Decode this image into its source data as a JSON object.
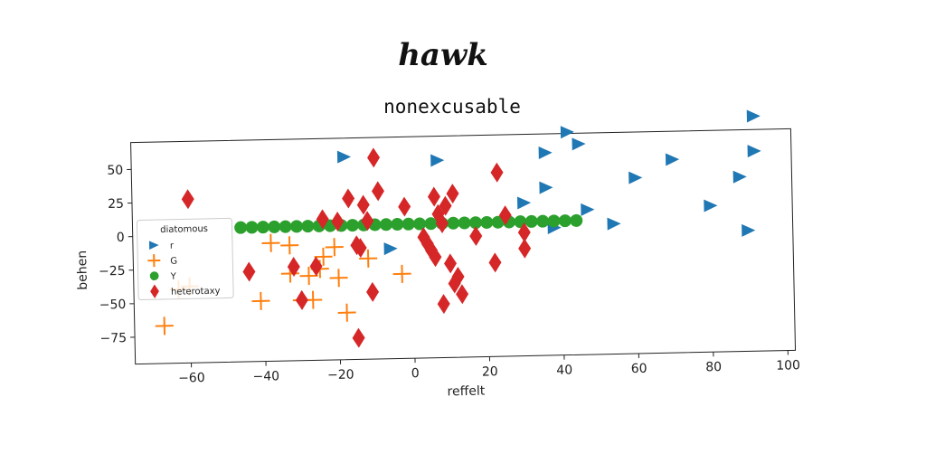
{
  "header": {
    "word": "hawk"
  },
  "chart_data": {
    "type": "scatter",
    "title": "nonexcusable",
    "xlabel": "reffelt",
    "ylabel": "behen",
    "xlim": [
      -75,
      102
    ],
    "ylim": [
      -95,
      70
    ],
    "xticks": [
      -60,
      -40,
      -20,
      0,
      20,
      40,
      60,
      80,
      100
    ],
    "yticks": [
      50,
      25,
      0,
      -25,
      -50,
      -75
    ],
    "xtick_labels": [
      "−60",
      "−40",
      "−20",
      "0",
      "20",
      "40",
      "60",
      "80",
      "100"
    ],
    "ytick_labels": [
      "50",
      "25",
      "0",
      "−25",
      "−50",
      "−75"
    ],
    "grid": false,
    "legend": {
      "title": "diatomous",
      "position": "left"
    },
    "series": [
      {
        "name": "r",
        "marker": "triangle-right",
        "color": "#1f77b4",
        "points": [
          [
            -18,
            56
          ],
          [
            7,
            52
          ],
          [
            -6,
            -13
          ],
          [
            36,
            56
          ],
          [
            42,
            71
          ],
          [
            45,
            62
          ],
          [
            36,
            30
          ],
          [
            30,
            19
          ],
          [
            47,
            13
          ],
          [
            54,
            2
          ],
          [
            38,
            0
          ],
          [
            60,
            36
          ],
          [
            70,
            49
          ],
          [
            80,
            14
          ],
          [
            88,
            35
          ],
          [
            92,
            54
          ],
          [
            92,
            80
          ],
          [
            90,
            -5
          ]
        ]
      },
      {
        "name": "G",
        "marker": "plus",
        "color": "#ff7f0e",
        "points": [
          [
            -63,
            -40
          ],
          [
            -60,
            -38
          ],
          [
            -67,
            -67
          ],
          [
            -41,
            -50
          ],
          [
            -38,
            -7
          ],
          [
            -33,
            -9
          ],
          [
            -33,
            -30
          ],
          [
            -28,
            -32
          ],
          [
            -30,
            -50
          ],
          [
            -27,
            -50
          ],
          [
            -25,
            -27
          ],
          [
            -24,
            -18
          ],
          [
            -21,
            -11
          ],
          [
            -20,
            -34
          ],
          [
            -18,
            -60
          ],
          [
            -12,
            -20
          ],
          [
            -3,
            -32
          ]
        ]
      },
      {
        "name": "Y",
        "marker": "circle",
        "color": "#2ca02c",
        "points": [
          [
            -46,
            5
          ],
          [
            -43,
            5
          ],
          [
            -40,
            5
          ],
          [
            -37,
            5
          ],
          [
            -34,
            5
          ],
          [
            -31,
            5
          ],
          [
            -28,
            5
          ],
          [
            -25,
            5
          ],
          [
            -22,
            5
          ],
          [
            -19,
            5
          ],
          [
            -16,
            5
          ],
          [
            -13,
            5
          ],
          [
            -10,
            5
          ],
          [
            -7,
            5
          ],
          [
            -4,
            5
          ],
          [
            -1,
            5
          ],
          [
            2,
            5
          ],
          [
            5,
            5
          ],
          [
            8,
            5
          ],
          [
            11,
            5
          ],
          [
            14,
            5
          ],
          [
            17,
            5
          ],
          [
            20,
            5
          ],
          [
            23,
            5
          ],
          [
            26,
            5
          ],
          [
            29,
            5
          ],
          [
            32,
            5
          ],
          [
            35,
            5
          ],
          [
            38,
            5
          ],
          [
            41,
            5
          ],
          [
            44,
            5
          ]
        ]
      },
      {
        "name": "heterotaxy",
        "marker": "diamond",
        "color": "#d62728",
        "points": [
          [
            -60,
            27
          ],
          [
            -44,
            -28
          ],
          [
            -32,
            -25
          ],
          [
            -30,
            -50
          ],
          [
            -26,
            -25
          ],
          [
            -24,
            10
          ],
          [
            -20,
            8
          ],
          [
            -17,
            25
          ],
          [
            -15,
            -10
          ],
          [
            -14,
            -12
          ],
          [
            -13,
            20
          ],
          [
            -12,
            8
          ],
          [
            -11,
            -45
          ],
          [
            -10,
            55
          ],
          [
            -9,
            30
          ],
          [
            -15,
            -79
          ],
          [
            -2,
            18
          ],
          [
            3,
            -5
          ],
          [
            4,
            -10
          ],
          [
            5,
            -15
          ],
          [
            6,
            25
          ],
          [
            6,
            -20
          ],
          [
            7,
            12
          ],
          [
            8,
            5
          ],
          [
            8,
            -55
          ],
          [
            9,
            18
          ],
          [
            10,
            -25
          ],
          [
            11,
            27
          ],
          [
            11,
            -40
          ],
          [
            12,
            -35
          ],
          [
            13,
            -48
          ],
          [
            17,
            -5
          ],
          [
            22,
            -25
          ],
          [
            23,
            42
          ],
          [
            25,
            10
          ],
          [
            30,
            -3
          ],
          [
            30,
            -15
          ]
        ]
      }
    ]
  }
}
